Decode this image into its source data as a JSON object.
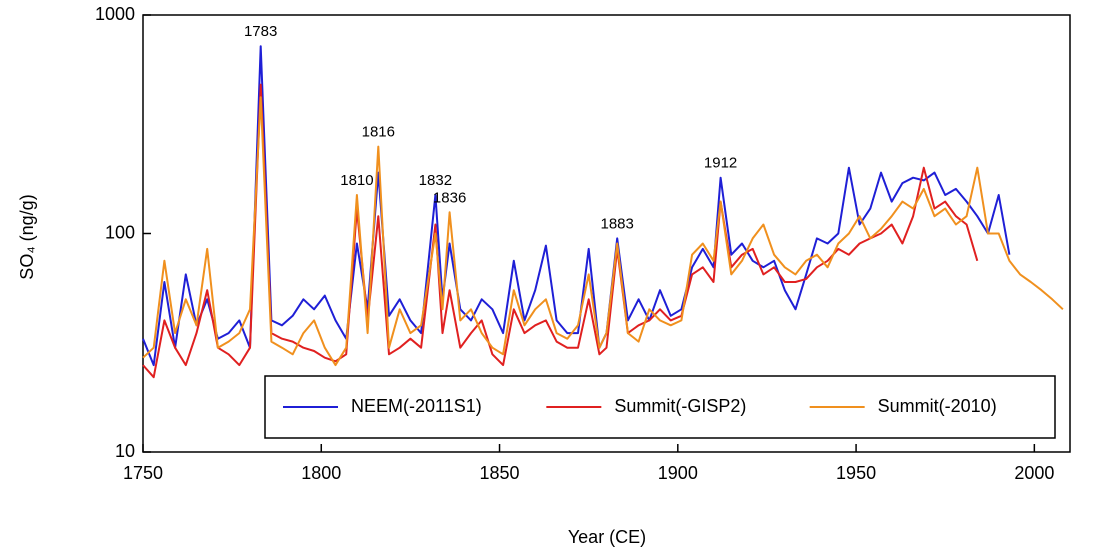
{
  "chart_data": {
    "type": "line",
    "xlabel": "Year (CE)",
    "ylabel": "SO₄ (ng/g)",
    "xlim": [
      1750,
      2010
    ],
    "ylim": [
      10,
      1000
    ],
    "ylog": true,
    "xticks": [
      1750,
      1800,
      1850,
      1900,
      1950,
      2000
    ],
    "yticks": [
      10,
      100,
      1000
    ],
    "legend": "lower right",
    "annotations": [
      "1783",
      "1810",
      "1816",
      "1832",
      "1836",
      "1883",
      "1912"
    ],
    "x": [
      1750,
      1753,
      1756,
      1759,
      1762,
      1765,
      1768,
      1771,
      1774,
      1777,
      1780,
      1783,
      1786,
      1789,
      1792,
      1795,
      1798,
      1801,
      1804,
      1807,
      1810,
      1813,
      1816,
      1819,
      1822,
      1825,
      1828,
      1832,
      1834,
      1836,
      1839,
      1842,
      1845,
      1848,
      1851,
      1854,
      1857,
      1860,
      1863,
      1866,
      1869,
      1872,
      1875,
      1878,
      1880,
      1883,
      1886,
      1889,
      1892,
      1895,
      1898,
      1901,
      1904,
      1907,
      1910,
      1912,
      1915,
      1918,
      1921,
      1924,
      1927,
      1930,
      1933,
      1936,
      1939,
      1942,
      1945,
      1948,
      1951,
      1954,
      1957,
      1960,
      1963,
      1966,
      1969,
      1972,
      1975,
      1978,
      1981,
      1984,
      1987,
      1990,
      1993,
      1996,
      1999,
      2002,
      2005,
      2008
    ],
    "series": [
      {
        "name": "NEEM(-2011S1)",
        "color": "#1f1fd6",
        "values": [
          33,
          25,
          60,
          30,
          65,
          38,
          50,
          33,
          35,
          40,
          30,
          720,
          40,
          38,
          42,
          50,
          45,
          52,
          40,
          33,
          90,
          45,
          190,
          42,
          50,
          40,
          35,
          150,
          50,
          90,
          45,
          40,
          50,
          45,
          35,
          75,
          40,
          55,
          88,
          40,
          35,
          35,
          85,
          30,
          35,
          95,
          40,
          50,
          40,
          55,
          42,
          45,
          70,
          85,
          70,
          180,
          80,
          90,
          75,
          70,
          75,
          55,
          45,
          65,
          95,
          90,
          100,
          200,
          110,
          130,
          190,
          140,
          170,
          180,
          175,
          190,
          150,
          160,
          140,
          120,
          100,
          150,
          80,
          null,
          null,
          null,
          null,
          null
        ]
      },
      {
        "name": "Summit(-GISP2)",
        "color": "#e02020",
        "values": [
          25,
          22,
          40,
          30,
          25,
          35,
          55,
          30,
          28,
          25,
          30,
          480,
          35,
          33,
          32,
          30,
          29,
          27,
          26,
          28,
          130,
          40,
          120,
          28,
          30,
          33,
          30,
          110,
          35,
          55,
          30,
          35,
          40,
          28,
          25,
          45,
          35,
          38,
          40,
          32,
          30,
          30,
          50,
          28,
          30,
          85,
          35,
          38,
          40,
          45,
          40,
          42,
          65,
          70,
          60,
          140,
          70,
          80,
          85,
          65,
          70,
          60,
          60,
          62,
          70,
          75,
          85,
          80,
          90,
          95,
          100,
          110,
          90,
          120,
          200,
          130,
          140,
          120,
          110,
          75,
          null,
          null,
          null,
          null,
          null,
          null,
          null,
          null
        ]
      },
      {
        "name": "Summit(-2010)",
        "color": "#f0901e",
        "values": [
          27,
          30,
          75,
          35,
          50,
          38,
          85,
          30,
          32,
          35,
          45,
          420,
          32,
          30,
          28,
          35,
          40,
          30,
          25,
          30,
          150,
          35,
          250,
          30,
          45,
          35,
          38,
          100,
          45,
          125,
          40,
          45,
          35,
          30,
          28,
          55,
          38,
          45,
          50,
          35,
          33,
          38,
          65,
          30,
          35,
          90,
          35,
          32,
          45,
          40,
          38,
          40,
          80,
          90,
          75,
          140,
          65,
          75,
          95,
          110,
          80,
          70,
          65,
          75,
          80,
          70,
          90,
          100,
          120,
          95,
          105,
          120,
          140,
          130,
          160,
          120,
          130,
          110,
          120,
          200,
          100,
          100,
          75,
          65,
          60,
          55,
          50,
          45
        ]
      }
    ]
  }
}
